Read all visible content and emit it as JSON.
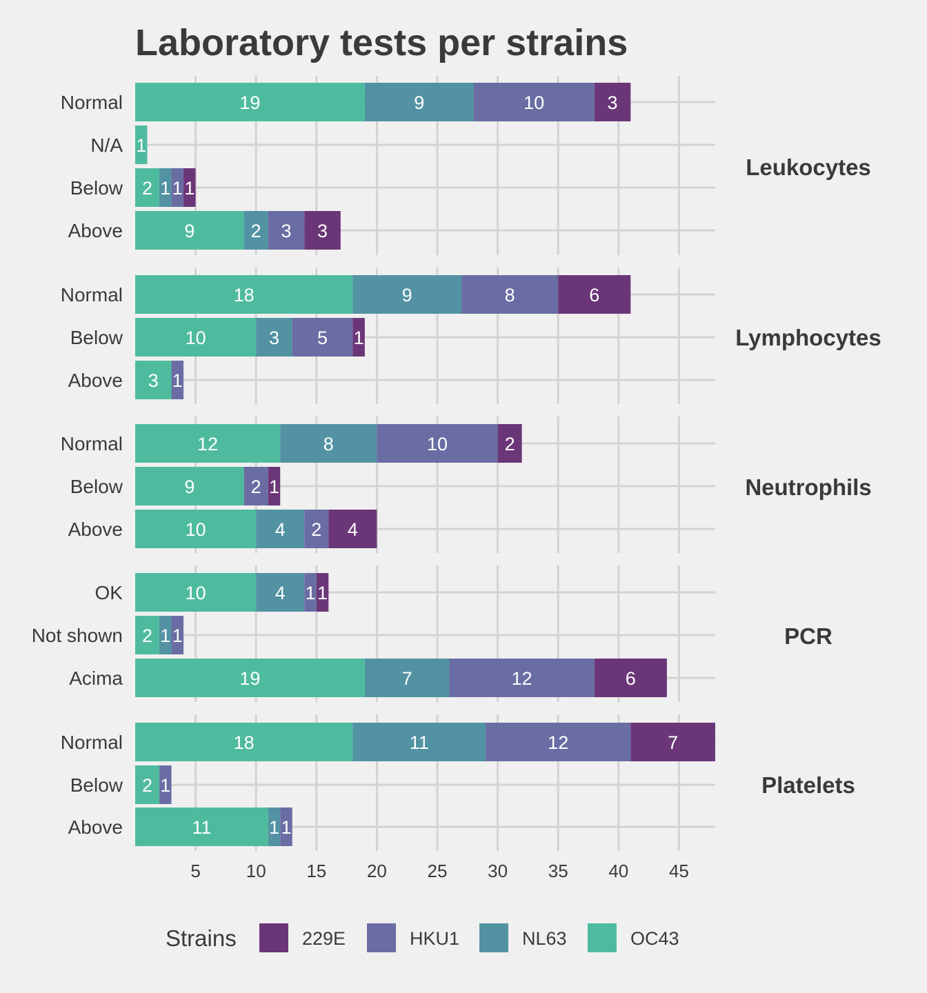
{
  "chart_data": {
    "type": "bar",
    "orientation": "horizontal",
    "stacked": true,
    "title": "Laboratory tests per strains",
    "xlabel": "",
    "ylabel": "",
    "xlim": [
      0,
      48
    ],
    "xticks": [
      5,
      10,
      15,
      20,
      25,
      30,
      35,
      40,
      45
    ],
    "grid": true,
    "legend": {
      "title": "Strains",
      "placement": "bottom",
      "entries": [
        "229E",
        "HKU1",
        "NL63",
        "OC43"
      ]
    },
    "series_colors": {
      "OC43": "#4fbb9e",
      "NL63": "#5292a3",
      "HKU1": "#6a6da3",
      "229E": "#6b3678"
    },
    "stack_order": [
      "OC43",
      "NL63",
      "HKU1",
      "229E"
    ],
    "facets": [
      {
        "name": "Leukocytes",
        "rows": [
          {
            "category": "Normal",
            "values": {
              "OC43": 19,
              "NL63": 9,
              "HKU1": 10,
              "229E": 3
            }
          },
          {
            "category": "N/A",
            "values": {
              "OC43": 1
            }
          },
          {
            "category": "Below",
            "values": {
              "OC43": 2,
              "NL63": 1,
              "HKU1": 1,
              "229E": 1
            }
          },
          {
            "category": "Above",
            "values": {
              "OC43": 9,
              "NL63": 2,
              "HKU1": 3,
              "229E": 3
            }
          }
        ]
      },
      {
        "name": "Lymphocytes",
        "rows": [
          {
            "category": "Normal",
            "values": {
              "OC43": 18,
              "NL63": 9,
              "HKU1": 8,
              "229E": 6
            }
          },
          {
            "category": "Below",
            "values": {
              "OC43": 10,
              "NL63": 3,
              "HKU1": 5,
              "229E": 1
            }
          },
          {
            "category": "Above",
            "values": {
              "OC43": 3,
              "HKU1": 1
            }
          }
        ]
      },
      {
        "name": "Neutrophils",
        "rows": [
          {
            "category": "Normal",
            "values": {
              "OC43": 12,
              "NL63": 8,
              "HKU1": 10,
              "229E": 2
            }
          },
          {
            "category": "Below",
            "values": {
              "OC43": 9,
              "HKU1": 2,
              "229E": 1
            }
          },
          {
            "category": "Above",
            "values": {
              "OC43": 10,
              "NL63": 4,
              "HKU1": 2,
              "229E": 4
            }
          }
        ]
      },
      {
        "name": "PCR",
        "rows": [
          {
            "category": "OK",
            "values": {
              "OC43": 10,
              "NL63": 4,
              "HKU1": 1,
              "229E": 1
            }
          },
          {
            "category": "Not shown",
            "values": {
              "OC43": 2,
              "NL63": 1,
              "HKU1": 1
            }
          },
          {
            "category": "Acima",
            "values": {
              "OC43": 19,
              "NL63": 7,
              "HKU1": 12,
              "229E": 6
            }
          }
        ]
      },
      {
        "name": "Platelets",
        "rows": [
          {
            "category": "Normal",
            "values": {
              "OC43": 18,
              "NL63": 11,
              "HKU1": 12,
              "229E": 7
            }
          },
          {
            "category": "Below",
            "values": {
              "OC43": 2,
              "HKU1": 1
            }
          },
          {
            "category": "Above",
            "values": {
              "OC43": 11,
              "NL63": 1,
              "HKU1": 1
            }
          }
        ]
      }
    ]
  }
}
